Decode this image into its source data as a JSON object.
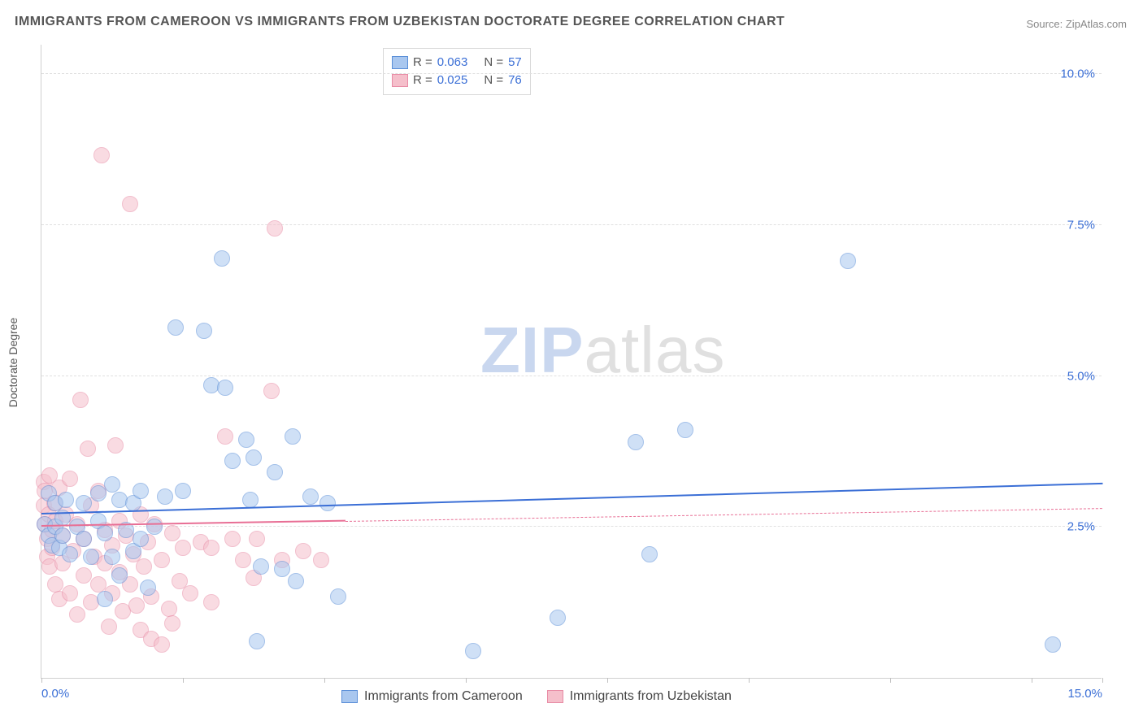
{
  "title": "IMMIGRANTS FROM CAMEROON VS IMMIGRANTS FROM UZBEKISTAN DOCTORATE DEGREE CORRELATION CHART",
  "source": "Source: ZipAtlas.com",
  "y_axis_title": "Doctorate Degree",
  "watermark": {
    "part1": "ZIP",
    "part2": "atlas"
  },
  "chart": {
    "type": "scatter",
    "background_color": "#ffffff",
    "grid_color": "#e0e0e0",
    "axis_color": "#d0d0d0",
    "tick_label_color": "#3b6fd6",
    "tick_fontsize": 15,
    "xlim": [
      0,
      15
    ],
    "ylim": [
      0,
      10.5
    ],
    "y_ticks": [
      2.5,
      5.0,
      7.5,
      10.0
    ],
    "y_tick_labels": [
      "2.5%",
      "5.0%",
      "7.5%",
      "10.0%"
    ],
    "x_ticks": [
      0,
      2,
      4,
      6,
      8,
      10,
      12,
      14,
      15
    ],
    "x_tick_labels_shown": {
      "0": "0.0%",
      "15": "15.0%"
    },
    "marker_radius": 10,
    "marker_opacity": 0.55,
    "series": [
      {
        "id": "cameroon",
        "label": "Immigrants from Cameroon",
        "fill_color": "#a9c7ef",
        "stroke_color": "#5b8fd8",
        "R": "0.063",
        "N": "57",
        "trend": {
          "x1": 0,
          "y1": 2.7,
          "x2": 15,
          "y2": 3.2,
          "color": "#3b6fd6",
          "dash_from_x": null
        },
        "points": [
          [
            0.05,
            2.55
          ],
          [
            0.1,
            2.35
          ],
          [
            0.1,
            3.05
          ],
          [
            0.15,
            2.2
          ],
          [
            0.2,
            2.5
          ],
          [
            0.2,
            2.9
          ],
          [
            0.25,
            2.15
          ],
          [
            0.3,
            2.35
          ],
          [
            0.3,
            2.65
          ],
          [
            0.35,
            2.95
          ],
          [
            0.4,
            2.05
          ],
          [
            0.5,
            2.5
          ],
          [
            0.6,
            2.3
          ],
          [
            0.6,
            2.9
          ],
          [
            0.7,
            2.0
          ],
          [
            0.8,
            2.6
          ],
          [
            0.8,
            3.05
          ],
          [
            0.9,
            1.3
          ],
          [
            0.9,
            2.4
          ],
          [
            1.0,
            2.0
          ],
          [
            1.0,
            3.2
          ],
          [
            1.1,
            1.7
          ],
          [
            1.1,
            2.95
          ],
          [
            1.2,
            2.45
          ],
          [
            1.3,
            2.1
          ],
          [
            1.3,
            2.9
          ],
          [
            1.4,
            3.1
          ],
          [
            1.4,
            2.3
          ],
          [
            1.5,
            1.5
          ],
          [
            1.6,
            2.5
          ],
          [
            1.75,
            3.0
          ],
          [
            1.9,
            5.8
          ],
          [
            2.0,
            3.1
          ],
          [
            2.3,
            5.75
          ],
          [
            2.4,
            4.85
          ],
          [
            2.55,
            6.95
          ],
          [
            2.6,
            4.8
          ],
          [
            2.7,
            3.6
          ],
          [
            2.9,
            3.95
          ],
          [
            2.95,
            2.95
          ],
          [
            3.0,
            3.65
          ],
          [
            3.1,
            1.85
          ],
          [
            3.05,
            0.6
          ],
          [
            3.3,
            3.4
          ],
          [
            3.4,
            1.8
          ],
          [
            3.55,
            4.0
          ],
          [
            3.6,
            1.6
          ],
          [
            3.8,
            3.0
          ],
          [
            4.05,
            2.9
          ],
          [
            4.2,
            1.35
          ],
          [
            6.1,
            0.45
          ],
          [
            7.3,
            1.0
          ],
          [
            8.4,
            3.9
          ],
          [
            8.6,
            2.05
          ],
          [
            9.1,
            4.1
          ],
          [
            11.4,
            6.9
          ],
          [
            14.3,
            0.55
          ]
        ]
      },
      {
        "id": "uzbekistan",
        "label": "Immigrants from Uzbekistan",
        "fill_color": "#f5bfcb",
        "stroke_color": "#e88ba5",
        "R": "0.025",
        "N": "76",
        "trend": {
          "x1": 0,
          "y1": 2.5,
          "x2": 15,
          "y2": 2.8,
          "color": "#e86f95",
          "dash_from_x": 4.3
        },
        "points": [
          [
            0.03,
            3.25
          ],
          [
            0.03,
            2.85
          ],
          [
            0.05,
            2.55
          ],
          [
            0.05,
            3.1
          ],
          [
            0.08,
            2.3
          ],
          [
            0.08,
            2.0
          ],
          [
            0.1,
            2.7
          ],
          [
            0.12,
            3.35
          ],
          [
            0.12,
            1.85
          ],
          [
            0.15,
            2.45
          ],
          [
            0.15,
            2.15
          ],
          [
            0.18,
            2.9
          ],
          [
            0.2,
            1.55
          ],
          [
            0.2,
            2.6
          ],
          [
            0.25,
            3.15
          ],
          [
            0.25,
            1.3
          ],
          [
            0.3,
            2.35
          ],
          [
            0.3,
            1.9
          ],
          [
            0.35,
            2.7
          ],
          [
            0.4,
            1.4
          ],
          [
            0.4,
            3.3
          ],
          [
            0.45,
            2.1
          ],
          [
            0.5,
            1.05
          ],
          [
            0.5,
            2.55
          ],
          [
            0.55,
            4.6
          ],
          [
            0.6,
            1.7
          ],
          [
            0.6,
            2.3
          ],
          [
            0.65,
            3.8
          ],
          [
            0.7,
            1.25
          ],
          [
            0.7,
            2.85
          ],
          [
            0.75,
            2.0
          ],
          [
            0.8,
            1.55
          ],
          [
            0.8,
            3.1
          ],
          [
            0.85,
            8.65
          ],
          [
            0.9,
            1.9
          ],
          [
            0.9,
            2.45
          ],
          [
            0.95,
            0.85
          ],
          [
            1.0,
            2.2
          ],
          [
            1.0,
            1.4
          ],
          [
            1.05,
            3.85
          ],
          [
            1.1,
            2.6
          ],
          [
            1.1,
            1.75
          ],
          [
            1.15,
            1.1
          ],
          [
            1.2,
            2.35
          ],
          [
            1.25,
            7.85
          ],
          [
            1.25,
            1.55
          ],
          [
            1.3,
            2.05
          ],
          [
            1.35,
            1.2
          ],
          [
            1.4,
            2.7
          ],
          [
            1.4,
            0.8
          ],
          [
            1.45,
            1.85
          ],
          [
            1.5,
            2.25
          ],
          [
            1.55,
            1.35
          ],
          [
            1.55,
            0.65
          ],
          [
            1.6,
            2.55
          ],
          [
            1.7,
            0.55
          ],
          [
            1.7,
            1.95
          ],
          [
            1.8,
            1.15
          ],
          [
            1.85,
            2.4
          ],
          [
            1.85,
            0.9
          ],
          [
            1.95,
            1.6
          ],
          [
            2.0,
            2.15
          ],
          [
            2.1,
            1.4
          ],
          [
            2.25,
            2.25
          ],
          [
            2.4,
            2.15
          ],
          [
            2.4,
            1.25
          ],
          [
            2.6,
            4.0
          ],
          [
            2.7,
            2.3
          ],
          [
            2.85,
            1.95
          ],
          [
            3.0,
            1.65
          ],
          [
            3.05,
            2.3
          ],
          [
            3.25,
            4.75
          ],
          [
            3.3,
            7.45
          ],
          [
            3.4,
            1.95
          ],
          [
            3.7,
            2.1
          ],
          [
            3.95,
            1.95
          ]
        ]
      }
    ]
  },
  "legend_top": {
    "r_label": "R =",
    "n_label": "N ="
  }
}
